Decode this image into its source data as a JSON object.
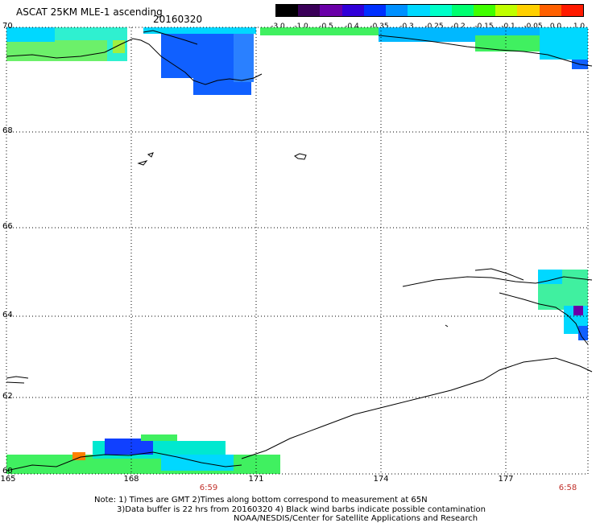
{
  "header": {
    "title": "ASCAT 25KM MLE-1 ascending",
    "date": "20160320"
  },
  "colorbar": {
    "labels": [
      "-3.0",
      "-1.0",
      "-0.5",
      "-0.4",
      "-0.35",
      "-0.3",
      "-0.25",
      "-0.2",
      "-0.15",
      "-0.1",
      "-0.05",
      "0.0",
      "1.0"
    ],
    "colors": [
      "#000000",
      "#3a0058",
      "#6a00a8",
      "#3000d8",
      "#0030ff",
      "#0090ff",
      "#00d8ff",
      "#00ffc8",
      "#00ff70",
      "#40ff00",
      "#c0ff00",
      "#ffd000",
      "#ff6000",
      "#ff1a00"
    ]
  },
  "axes": {
    "lat_labels": [
      "70",
      "68",
      "66",
      "64",
      "62",
      "60"
    ],
    "lon_labels": [
      "165",
      "168",
      "171",
      "174",
      "177"
    ],
    "time_labels": [
      "6:59",
      "6:58"
    ]
  },
  "notes": {
    "line1": "Note: 1) Times are GMT 2)Times along bottom correspond to measurement at 65N",
    "line2": "3)Data buffer is 22 hrs from 20160320 4) Black wind barbs indicate possible contamination",
    "line3": "NOAA/NESDIS/Center for Satellite Applications and Research"
  }
}
